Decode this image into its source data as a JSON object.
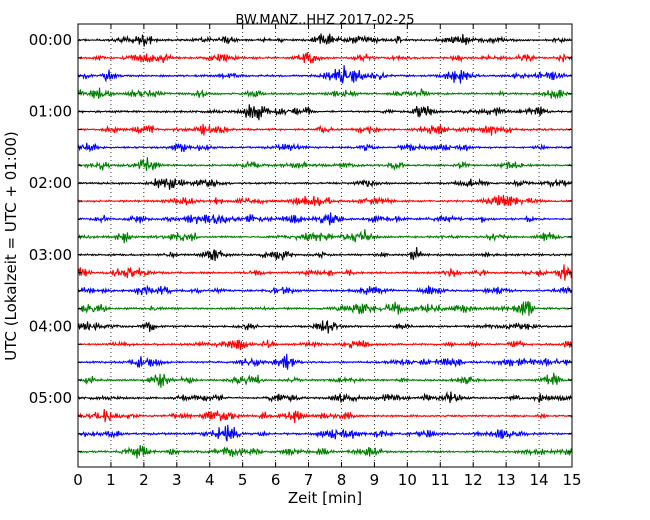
{
  "chart_data": {
    "type": "line",
    "title": "BW.MANZ..HHZ 2017-02-25",
    "xlabel": "Zeit  [min]",
    "ylabel": "UTC (Lokalzeit = UTC + 01:00)",
    "xlim": [
      0,
      15
    ],
    "x_ticks": [
      "0",
      "1",
      "2",
      "3",
      "4",
      "5",
      "6",
      "7",
      "8",
      "9",
      "10",
      "11",
      "12",
      "13",
      "14",
      "15"
    ],
    "y_tick_labels": [
      "00:00",
      "01:00",
      "02:00",
      "03:00",
      "04:00",
      "05:00"
    ],
    "trace_interval_minutes": 15,
    "trace_count": 24,
    "grid": "vertical dotted at each minute",
    "trace_colors": [
      "#000000",
      "#ff0000",
      "#0000ff",
      "#007f00"
    ]
  }
}
